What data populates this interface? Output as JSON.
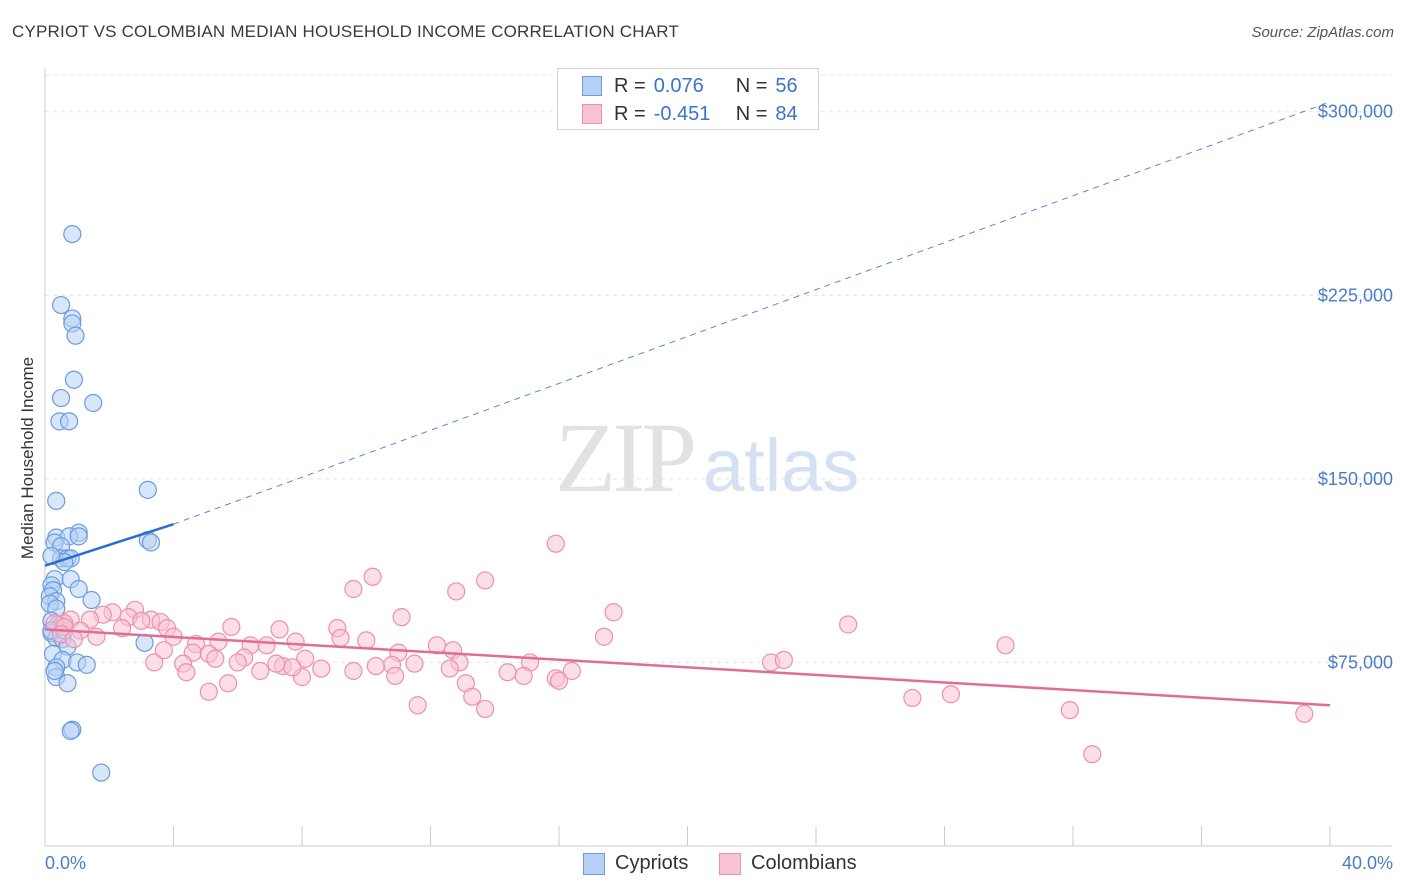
{
  "title": "CYPRIOT VS COLOMBIAN MEDIAN HOUSEHOLD INCOME CORRELATION CHART",
  "source": "Source: ZipAtlas.com",
  "watermark": {
    "zip": "ZIP",
    "atlas": "atlas"
  },
  "colors": {
    "blue_fill": "#b7d1f4",
    "blue_stroke": "#6b9be0",
    "blue_line": "#2b6ccc",
    "pink_fill": "#f8c3d2",
    "pink_stroke": "#ee8fae",
    "pink_line": "#e06c98",
    "grid": "#e4e4e4",
    "axis": "#cccccc",
    "tick_text": "#4a7cc7"
  },
  "legend": {
    "rows": [
      {
        "r_label": "R =",
        "r_value": "0.076",
        "n_label": "N =",
        "n_value": "56"
      },
      {
        "r_label": "R =",
        "r_value": "-0.451",
        "n_label": "N =",
        "n_value": "84"
      }
    ]
  },
  "bottom_legend": {
    "cypriots": "Cypriots",
    "colombians": "Colombians"
  },
  "chart_data": {
    "type": "scatter",
    "title": "CYPRIOT VS COLOMBIAN MEDIAN HOUSEHOLD INCOME CORRELATION CHART",
    "xlabel": "",
    "ylabel": "Median Household Income",
    "xlim": [
      0,
      40
    ],
    "ylim": [
      0,
      315000
    ],
    "x_tick_labels": [
      "0.0%",
      "40.0%"
    ],
    "y_ticks": [
      75000,
      150000,
      225000,
      300000
    ],
    "y_tick_labels": [
      "$75,000",
      "$150,000",
      "$225,000",
      "$300,000"
    ],
    "grid": true,
    "legend_position": "top-center",
    "series": [
      {
        "name": "Cypriots",
        "r": 0.076,
        "n": 56,
        "trend": {
          "x0": 0.0,
          "y0": 114500,
          "x1": 4.0,
          "y1": 131500,
          "x_ext": 40.0,
          "y_ext": 304000
        },
        "points": [
          [
            0.85,
            250000
          ],
          [
            0.5,
            221000
          ],
          [
            0.85,
            215500
          ],
          [
            0.85,
            213500
          ],
          [
            0.95,
            208500
          ],
          [
            0.9,
            190500
          ],
          [
            0.5,
            183000
          ],
          [
            1.5,
            181000
          ],
          [
            0.45,
            173500
          ],
          [
            0.75,
            173500
          ],
          [
            3.2,
            145500
          ],
          [
            0.35,
            141000
          ],
          [
            1.05,
            128000
          ],
          [
            0.35,
            126000
          ],
          [
            0.75,
            126500
          ],
          [
            1.05,
            126500
          ],
          [
            3.2,
            125000
          ],
          [
            3.3,
            124000
          ],
          [
            0.3,
            124000
          ],
          [
            0.5,
            122500
          ],
          [
            0.5,
            117500
          ],
          [
            0.7,
            117500
          ],
          [
            0.8,
            117500
          ],
          [
            0.6,
            116000
          ],
          [
            0.2,
            118500
          ],
          [
            0.3,
            109000
          ],
          [
            0.8,
            109000
          ],
          [
            0.2,
            106500
          ],
          [
            0.25,
            104500
          ],
          [
            1.05,
            105000
          ],
          [
            0.15,
            102000
          ],
          [
            0.35,
            100000
          ],
          [
            1.45,
            100500
          ],
          [
            0.15,
            99000
          ],
          [
            0.35,
            97000
          ],
          [
            0.2,
            92000
          ],
          [
            0.4,
            90500
          ],
          [
            0.5,
            90000
          ],
          [
            0.2,
            87000
          ],
          [
            0.35,
            85000
          ],
          [
            0.55,
            84500
          ],
          [
            3.1,
            83000
          ],
          [
            0.7,
            81500
          ],
          [
            0.25,
            78500
          ],
          [
            0.55,
            76000
          ],
          [
            1.0,
            75000
          ],
          [
            1.3,
            74000
          ],
          [
            0.35,
            73000
          ],
          [
            0.35,
            69000
          ],
          [
            0.7,
            66500
          ],
          [
            0.85,
            47500
          ],
          [
            0.8,
            47000
          ],
          [
            1.75,
            30000
          ],
          [
            0.2,
            88000
          ],
          [
            0.6,
            88000
          ],
          [
            0.3,
            71500
          ]
        ]
      },
      {
        "name": "Colombians",
        "r": -0.451,
        "n": 84,
        "trend": {
          "x0": 0.0,
          "y0": 88500,
          "x1": 40.0,
          "y1": 57500
        },
        "points": [
          [
            15.9,
            123500
          ],
          [
            10.2,
            110000
          ],
          [
            13.7,
            108500
          ],
          [
            9.6,
            105000
          ],
          [
            12.8,
            104000
          ],
          [
            17.7,
            95500
          ],
          [
            11.1,
            93500
          ],
          [
            2.1,
            95500
          ],
          [
            2.8,
            96500
          ],
          [
            1.8,
            94500
          ],
          [
            2.6,
            93500
          ],
          [
            3.3,
            92500
          ],
          [
            3.0,
            92000
          ],
          [
            1.4,
            92500
          ],
          [
            0.8,
            92500
          ],
          [
            0.6,
            91000
          ],
          [
            3.6,
            91500
          ],
          [
            0.3,
            91000
          ],
          [
            0.6,
            89500
          ],
          [
            2.4,
            89000
          ],
          [
            25.0,
            90500
          ],
          [
            5.8,
            89500
          ],
          [
            7.3,
            88500
          ],
          [
            9.1,
            89000
          ],
          [
            3.8,
            89000
          ],
          [
            1.1,
            88000
          ],
          [
            0.5,
            86500
          ],
          [
            4.0,
            85500
          ],
          [
            1.6,
            85500
          ],
          [
            0.9,
            84500
          ],
          [
            9.2,
            85000
          ],
          [
            10.0,
            84000
          ],
          [
            7.8,
            83500
          ],
          [
            5.4,
            83500
          ],
          [
            4.7,
            82500
          ],
          [
            6.4,
            82000
          ],
          [
            6.9,
            82000
          ],
          [
            12.2,
            82000
          ],
          [
            17.4,
            85500
          ],
          [
            29.9,
            82000
          ],
          [
            12.7,
            80000
          ],
          [
            11.0,
            79000
          ],
          [
            4.6,
            79000
          ],
          [
            5.1,
            78500
          ],
          [
            8.1,
            76500
          ],
          [
            6.2,
            77000
          ],
          [
            5.3,
            76500
          ],
          [
            6.0,
            75000
          ],
          [
            11.5,
            74500
          ],
          [
            12.9,
            75000
          ],
          [
            10.8,
            74000
          ],
          [
            15.1,
            75000
          ],
          [
            22.6,
            75000
          ],
          [
            23.0,
            76000
          ],
          [
            7.4,
            73500
          ],
          [
            7.2,
            74500
          ],
          [
            8.6,
            72500
          ],
          [
            4.3,
            74500
          ],
          [
            6.7,
            71500
          ],
          [
            9.6,
            71500
          ],
          [
            4.4,
            71000
          ],
          [
            16.4,
            71500
          ],
          [
            14.4,
            71000
          ],
          [
            15.9,
            68500
          ],
          [
            14.9,
            69500
          ],
          [
            10.9,
            69500
          ],
          [
            3.4,
            75000
          ],
          [
            5.7,
            66500
          ],
          [
            13.1,
            66500
          ],
          [
            8.0,
            69000
          ],
          [
            7.7,
            73000
          ],
          [
            10.3,
            73500
          ],
          [
            12.6,
            72500
          ],
          [
            13.3,
            61000
          ],
          [
            11.6,
            57500
          ],
          [
            5.1,
            63000
          ],
          [
            27.0,
            60500
          ],
          [
            28.2,
            62000
          ],
          [
            13.7,
            56000
          ],
          [
            31.9,
            55500
          ],
          [
            39.2,
            54000
          ],
          [
            32.6,
            37500
          ],
          [
            16.0,
            67500
          ],
          [
            3.7,
            80000
          ]
        ]
      }
    ]
  }
}
